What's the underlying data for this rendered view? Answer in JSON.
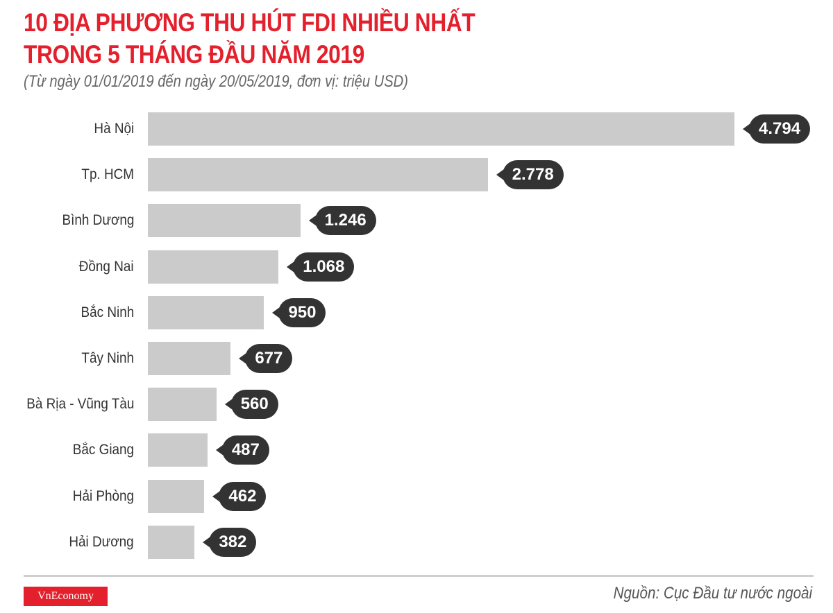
{
  "header": {
    "title_line1": "10 ĐỊA PHƯƠNG THU HÚT FDI NHIỀU NHẤT",
    "title_line2": "TRONG 5 THÁNG ĐẦU NĂM 2019",
    "subtitle": "(Từ ngày 01/01/2019 đến ngày 20/05/2019, đơn vị: triệu USD)"
  },
  "footer": {
    "logo": "VnEconomy",
    "source": "Nguồn: Cục Đầu tư nước ngoài"
  },
  "colors": {
    "title": "#e3202c",
    "bar": "#cccbcc",
    "bubble": "#333333",
    "logo_bg": "#e3202c"
  },
  "rows": [
    {
      "label": "Hà Nội",
      "value": 4794,
      "display": "4.794"
    },
    {
      "label": "Tp. HCM",
      "value": 2778,
      "display": "2.778"
    },
    {
      "label": "Bình Dương",
      "value": 1246,
      "display": "1.246"
    },
    {
      "label": "Đồng Nai",
      "value": 1068,
      "display": "1.068"
    },
    {
      "label": "Bắc Ninh",
      "value": 950,
      "display": "950"
    },
    {
      "label": "Tây Ninh",
      "value": 677,
      "display": "677"
    },
    {
      "label": "Bà Rịa - Vũng Tàu",
      "value": 560,
      "display": "560"
    },
    {
      "label": "Bắc Giang",
      "value": 487,
      "display": "487"
    },
    {
      "label": "Hải Phòng",
      "value": 462,
      "display": "462"
    },
    {
      "label": "Hải Dương",
      "value": 382,
      "display": "382"
    }
  ],
  "chart_data": {
    "type": "bar",
    "orientation": "horizontal",
    "title": "10 ĐỊA PHƯƠNG THU HÚT FDI NHIỀU NHẤT TRONG 5 THÁNG ĐẦU NĂM 2019",
    "subtitle": "(Từ ngày 01/01/2019 đến ngày 20/05/2019, đơn vị: triệu USD)",
    "categories": [
      "Hà Nội",
      "Tp. HCM",
      "Bình Dương",
      "Đồng Nai",
      "Bắc Ninh",
      "Tây Ninh",
      "Bà Rịa - Vũng Tàu",
      "Bắc Giang",
      "Hải Phòng",
      "Hải Dương"
    ],
    "values": [
      4794,
      2778,
      1246,
      1068,
      950,
      677,
      560,
      487,
      462,
      382
    ],
    "xlabel": "",
    "ylabel": "",
    "unit": "triệu USD",
    "grid": false,
    "legend": null,
    "data_labels": true,
    "source": "Nguồn: Cục Đầu tư nước ngoài"
  }
}
